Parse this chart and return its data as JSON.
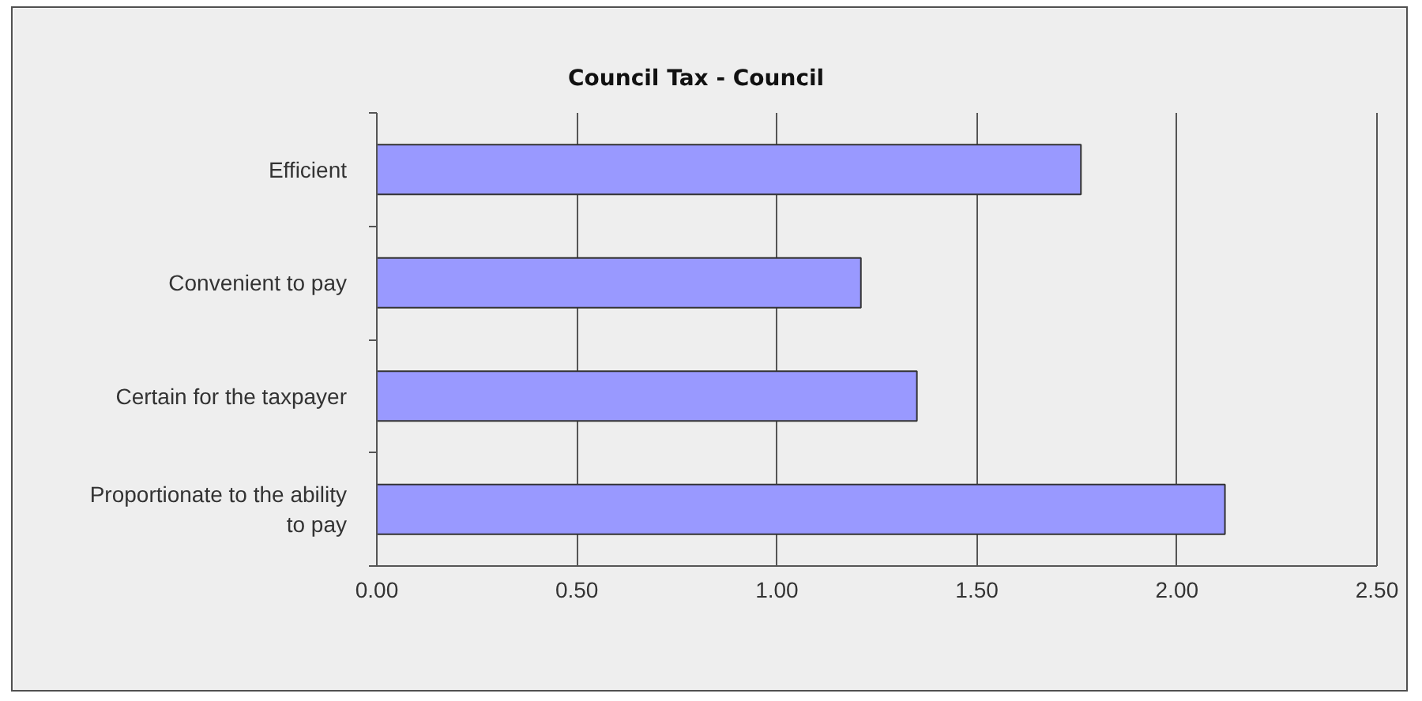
{
  "chart_data": {
    "type": "bar",
    "title": "Council Tax - Council",
    "orientation": "horizontal",
    "categories": [
      "Efficient",
      "Convenient to pay",
      "Certain for the taxpayer",
      "Proportionate to the ability to pay"
    ],
    "values": [
      1.76,
      1.21,
      1.35,
      2.12
    ],
    "color": "#9999ff",
    "xlim": [
      0,
      2.5
    ],
    "xticks": [
      {
        "value": 0,
        "label": "0.00"
      },
      {
        "value": 0.5,
        "label": "0.50"
      },
      {
        "value": 1,
        "label": "1.00"
      },
      {
        "value": 1.5,
        "label": "1.50"
      },
      {
        "value": 2,
        "label": "2.00"
      },
      {
        "value": 2.5,
        "label": "2.50"
      }
    ],
    "grid": "x"
  }
}
